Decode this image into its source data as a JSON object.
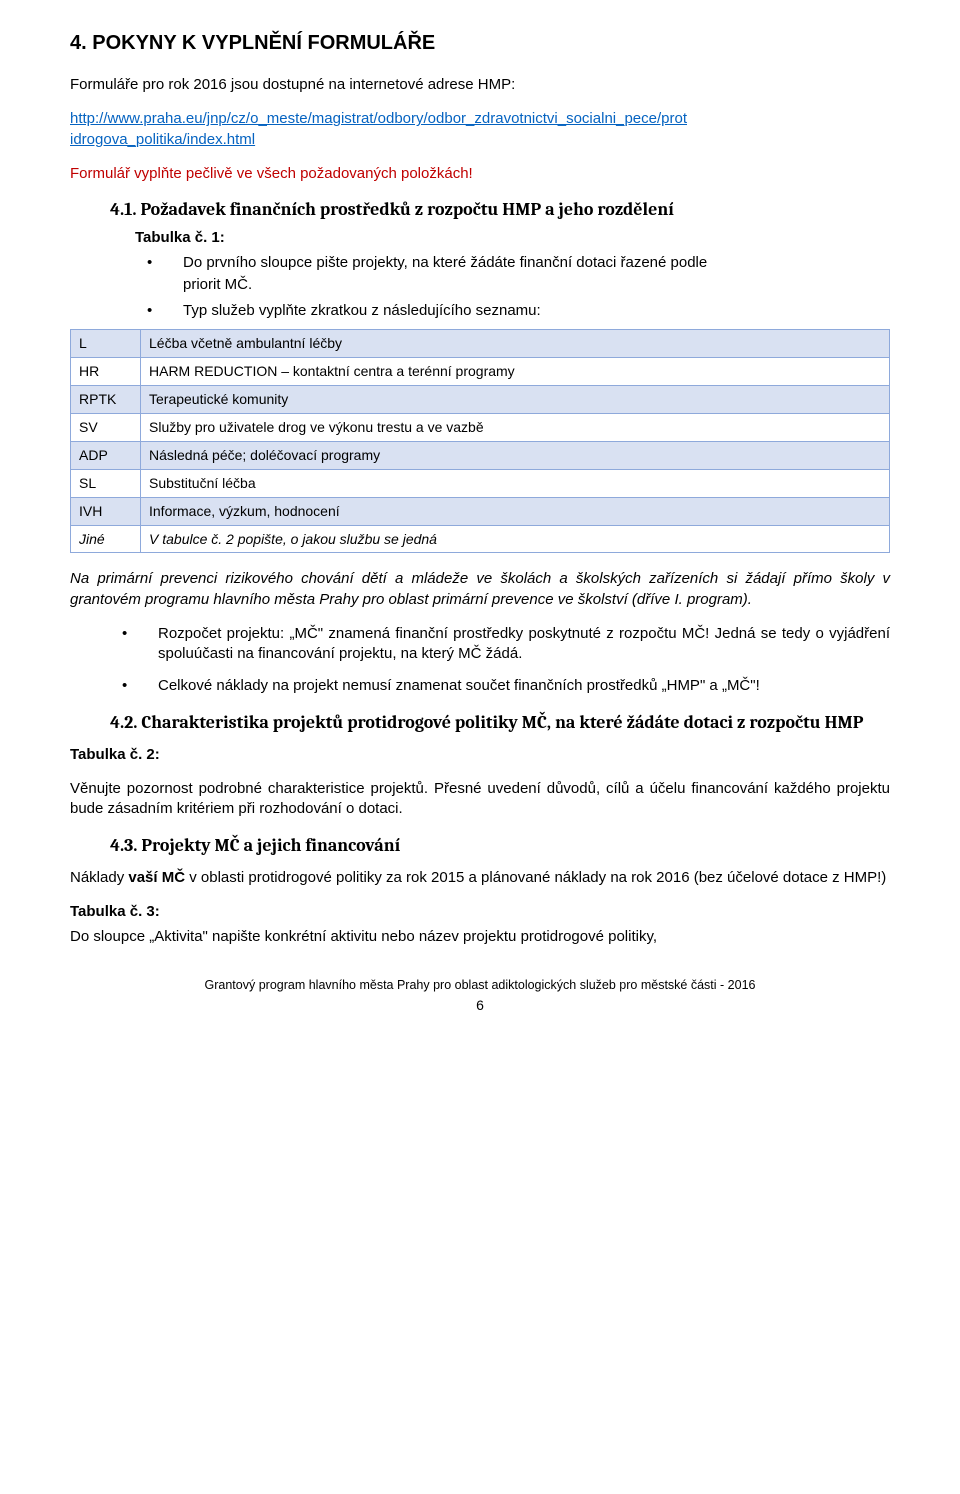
{
  "title_4": "4.  POKYNY K VYPLNĚNÍ FORMULÁŘE",
  "intro_1": "Formuláře pro rok 2016 jsou dostupné na internetové adrese HMP:",
  "link_url_part1": "http://www.praha.eu/jnp/cz/o_meste/magistrat/odbory/odbor_zdravotnictvi_socialni_pece/prot",
  "link_url_part2": "idrogova_politika/index.html",
  "red_line": "Formulář vyplňte pečlivě ve všech požadovaných položkách!",
  "sub41": "4.1. Požadavek finančních prostředků z rozpočtu HMP a jeho rozdělení",
  "tab1_label": "Tabulka č. 1:",
  "bullet_a1": "Do prvního sloupce pište projekty, na které žádáte finanční dotaci řazené podle",
  "bullet_a2": "priorit MČ.",
  "bullet_b": "Typ služeb vyplňte zkratkou z následujícího seznamu:",
  "services": [
    {
      "code": "L",
      "desc": "Léčba včetně ambulantní léčby",
      "shaded": true
    },
    {
      "code": "HR",
      "desc": "HARM REDUCTION – kontaktní centra a terénní programy",
      "shaded": false
    },
    {
      "code": "RPTK",
      "desc": "Terapeutické komunity",
      "shaded": true
    },
    {
      "code": "SV",
      "desc": "Služby pro uživatele drog ve výkonu trestu a ve vazbě",
      "shaded": false
    },
    {
      "code": "ADP",
      "desc": "Následná péče; doléčovací programy",
      "shaded": true
    },
    {
      "code": "SL",
      "desc": "Substituční léčba",
      "shaded": false
    },
    {
      "code": "IVH",
      "desc": "Informace, výzkum, hodnocení",
      "shaded": true
    },
    {
      "code": "Jiné",
      "desc": "V tabulce č. 2 popište, o jakou službu se jedná",
      "shaded": false,
      "italic": true
    }
  ],
  "para_primary": "Na primární prevenci rizikového chování dětí a mládeže ve školách a školských zařízeních si žádají přímo školy v grantovém programu hlavního města Prahy pro oblast primární prevence ve školství (dříve I. program).",
  "bullet_c": "Rozpočet projektu:  „MČ\" znamená finanční prostředky poskytnuté z rozpočtu MČ! Jedná se tedy o vyjádření spoluúčasti na financování projektu, na který MČ žádá.",
  "bullet_d": "Celkové náklady na projekt nemusí znamenat součet finančních prostředků „HMP\" a „MČ\"!",
  "sub42": "4.2. Charakteristika projektů protidrogové politiky MČ, na které žádáte dotaci z rozpočtu HMP",
  "tab2_label": "Tabulka č. 2:",
  "tab2_text": "Věnujte pozornost podrobné charakteristice projektů. Přesné uvedení důvodů, cílů a účelu financování každého projektu bude zásadním kritériem při rozhodování o dotaci.",
  "sub43": "4.3. Projekty MČ a jejich financování",
  "sub43_text_a": "Náklady ",
  "sub43_text_bold": "vaší MČ",
  "sub43_text_b": " v oblasti protidrogové politiky za rok 2015 a plánované náklady na rok 2016 (bez účelové dotace z HMP!)",
  "tab3_label": "Tabulka č. 3:",
  "tab3_text": "Do sloupce „Aktivita\" napište konkrétní aktivitu nebo název projektu protidrogové politiky,",
  "footer": "Grantový program hlavního města Prahy pro oblast adiktologických služeb pro městské části - 2016",
  "page_num": "6"
}
